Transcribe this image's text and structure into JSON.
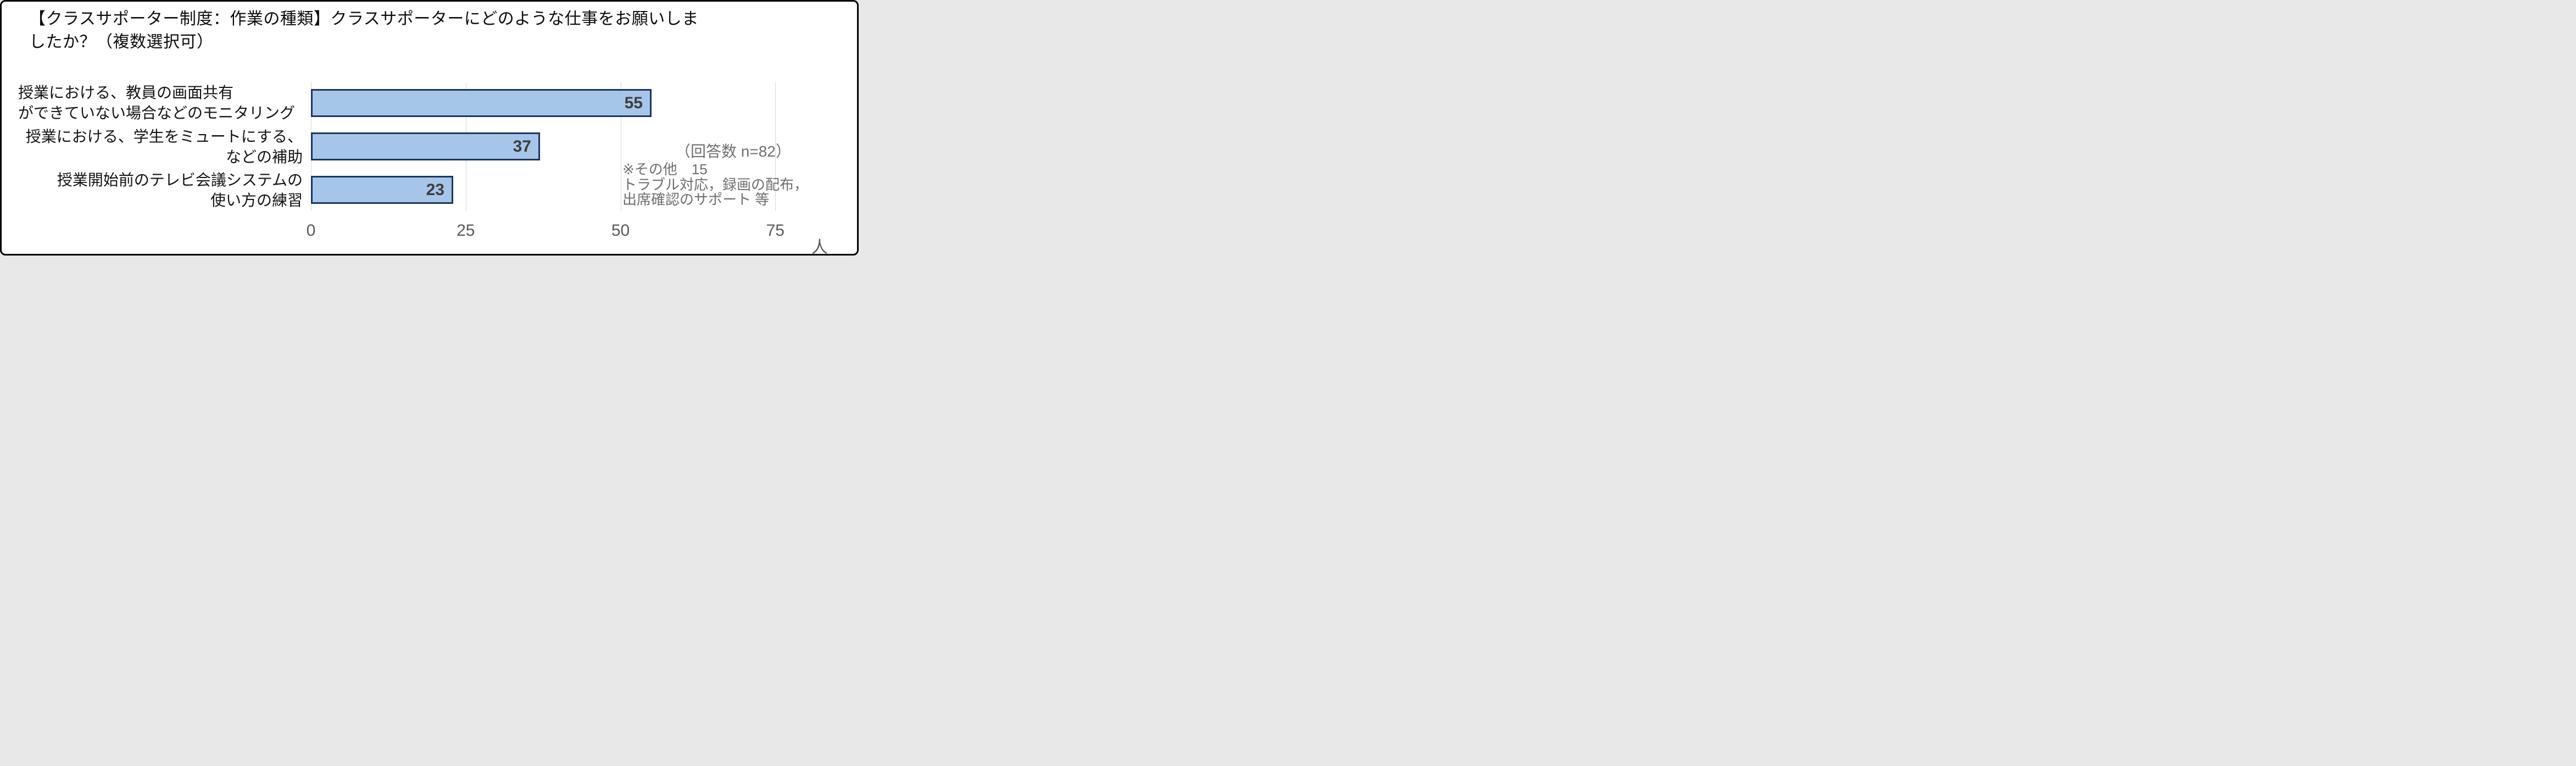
{
  "page": {
    "background": "#ffffff",
    "frame_border_color": "#000000"
  },
  "title": {
    "full_text": "【クラスサポーター制度：作業の種類】クラスサポーターにどのような仕事をお願いしましたか？（複数選択可）",
    "lines": [
      "【クラスサポーター制度：作業の種類】クラスサポーターにどのような仕事をお願いしま",
      "したか？（複数選択可）"
    ]
  },
  "chart_data": {
    "type": "bar",
    "orientation": "horizontal",
    "title": "【クラスサポーター制度：作業の種類】クラスサポーターにどのような仕事をお願いしましたか？（複数選択可）",
    "categories": [
      "授業における、教員の画面共有ができていない場合などのモニタリング",
      "授業における、学生をミュートにする、などの補助",
      "授業開始前のテレビ会議システムの使い方の練習"
    ],
    "category_label_lines": [
      [
        "授業における、教員の画面共有",
        "ができていない場合などのモニタリング"
      ],
      [
        "授業における、学生をミュートにする、",
        "などの補助"
      ],
      [
        "授業開始前のテレビ会議システムの",
        "使い方の練習"
      ]
    ],
    "category_label_align": [
      "left",
      "right",
      "right"
    ],
    "values": [
      55,
      37,
      23
    ],
    "value_labels": [
      "55",
      "37",
      "23"
    ],
    "x_ticks": [
      0,
      25,
      50,
      75
    ],
    "x_tick_labels": [
      "0",
      "25",
      "50",
      "75"
    ],
    "xlim": [
      0,
      83
    ],
    "x_unit": "人",
    "grid": "vertical",
    "legend": null,
    "colors": {
      "bar_fill": "#A6C6E9",
      "bar_border": "#1E3560",
      "value_label": "#3D3D3D",
      "tick_label": "#595959",
      "gridline": "#D9D9D9",
      "annotation": "#6F6F6F"
    },
    "annotations": {
      "n_label": "（回答数 n=82）",
      "note_lines": [
        "※その他　15",
        "トラブル対応，録画の配布，",
        "出席確認のサポート 等"
      ]
    }
  }
}
